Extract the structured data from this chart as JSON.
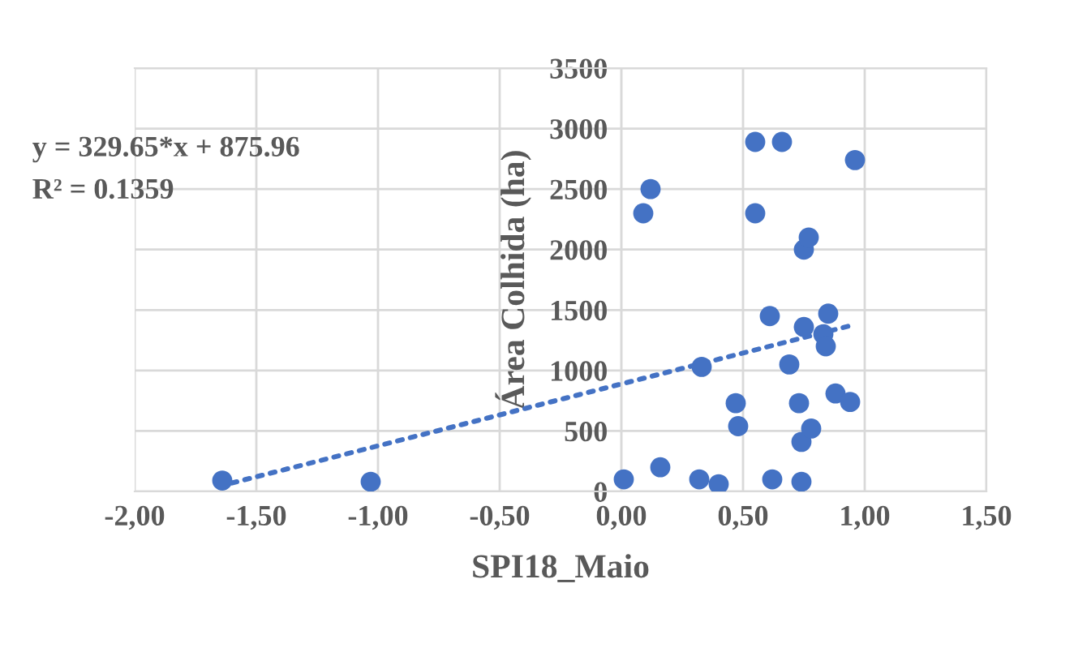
{
  "chart_data": {
    "type": "scatter",
    "xlabel": "SPI18_Maio",
    "ylabel": "Área Colhida (ha)",
    "annotations": [
      "y = 329.65*x + 875.96",
      "R² = 0.1359"
    ],
    "xlim": [
      -2,
      1.5
    ],
    "xticks": [
      {
        "value": -2,
        "label": "-2,00"
      },
      {
        "value": -1.5,
        "label": "-1,50"
      },
      {
        "value": -1,
        "label": "-1,00"
      },
      {
        "value": -0.5,
        "label": "-0,50"
      },
      {
        "value": 0,
        "label": "0,00"
      },
      {
        "value": 0.5,
        "label": "0,50"
      },
      {
        "value": 1,
        "label": "1,00"
      },
      {
        "value": 1.5,
        "label": "1,50"
      }
    ],
    "ylim": [
      0,
      3500
    ],
    "yticks": [
      0,
      500,
      1000,
      1500,
      2000,
      2500,
      3000,
      3500
    ],
    "grid": true,
    "series": [
      {
        "color": "#4472c4",
        "marker": "circle",
        "x": [
          -1.64,
          -1.03,
          0.01,
          0.16,
          0.09,
          0.12,
          0.32,
          0.4,
          0.33,
          0.47,
          0.48,
          0.55,
          0.66,
          0.55,
          0.96,
          0.61,
          0.62,
          0.74,
          0.69,
          0.73,
          0.74,
          0.78,
          0.75,
          0.77,
          0.75,
          0.85,
          0.83,
          0.84,
          0.88,
          0.94
        ],
        "values": [
          90,
          80,
          100,
          200,
          2300,
          2500,
          100,
          60,
          1030,
          730,
          540,
          2890,
          2890,
          2300,
          2740,
          1450,
          100,
          80,
          1050,
          730,
          410,
          520,
          2000,
          2100,
          1360,
          1470,
          1300,
          1200,
          810,
          740
        ]
      },
      {
        "type": "line",
        "color": "#4472c4",
        "line_style": "dotted",
        "x": [
          -1.6,
          0.96
        ],
        "values": [
          70,
          1380
        ]
      }
    ]
  }
}
